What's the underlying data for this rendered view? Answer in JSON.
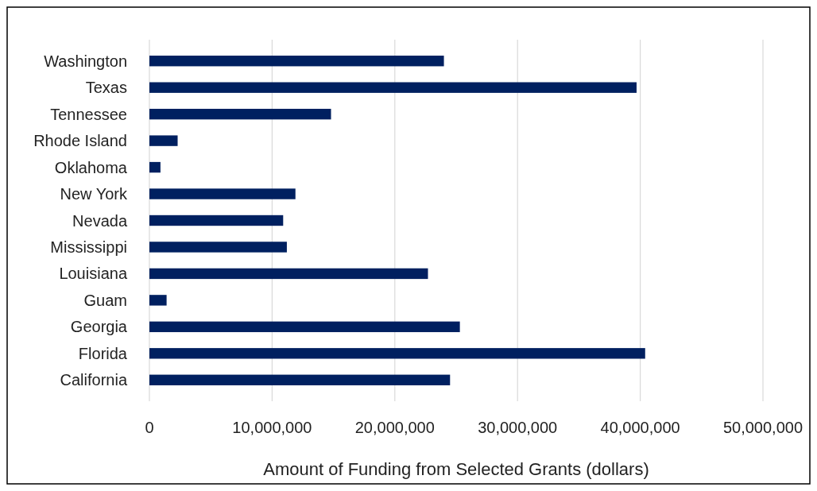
{
  "chart_data": {
    "type": "bar",
    "orientation": "horizontal",
    "categories": [
      "Washington",
      "Texas",
      "Tennessee",
      "Rhode Island",
      "Oklahoma",
      "New York",
      "Nevada",
      "Mississippi",
      "Louisiana",
      "Guam",
      "Georgia",
      "Florida",
      "California"
    ],
    "values": [
      24000000,
      39700000,
      14800000,
      2300000,
      900000,
      11900000,
      10900000,
      11200000,
      22700000,
      1400000,
      25300000,
      40400000,
      24500000
    ],
    "color": "#002060",
    "xlim": [
      0,
      50000000
    ],
    "xticks": [
      {
        "value": 0,
        "label": "0"
      },
      {
        "value": 10000000,
        "label": "10,000,000"
      },
      {
        "value": 20000000,
        "label": "20,000,000"
      },
      {
        "value": 30000000,
        "label": "30,000,000"
      },
      {
        "value": 40000000,
        "label": "40,000,000"
      },
      {
        "value": 50000000,
        "label": "50,000,000"
      }
    ],
    "xlabel": "Amount of Funding from Selected Grants (dollars)",
    "grid": "x"
  }
}
